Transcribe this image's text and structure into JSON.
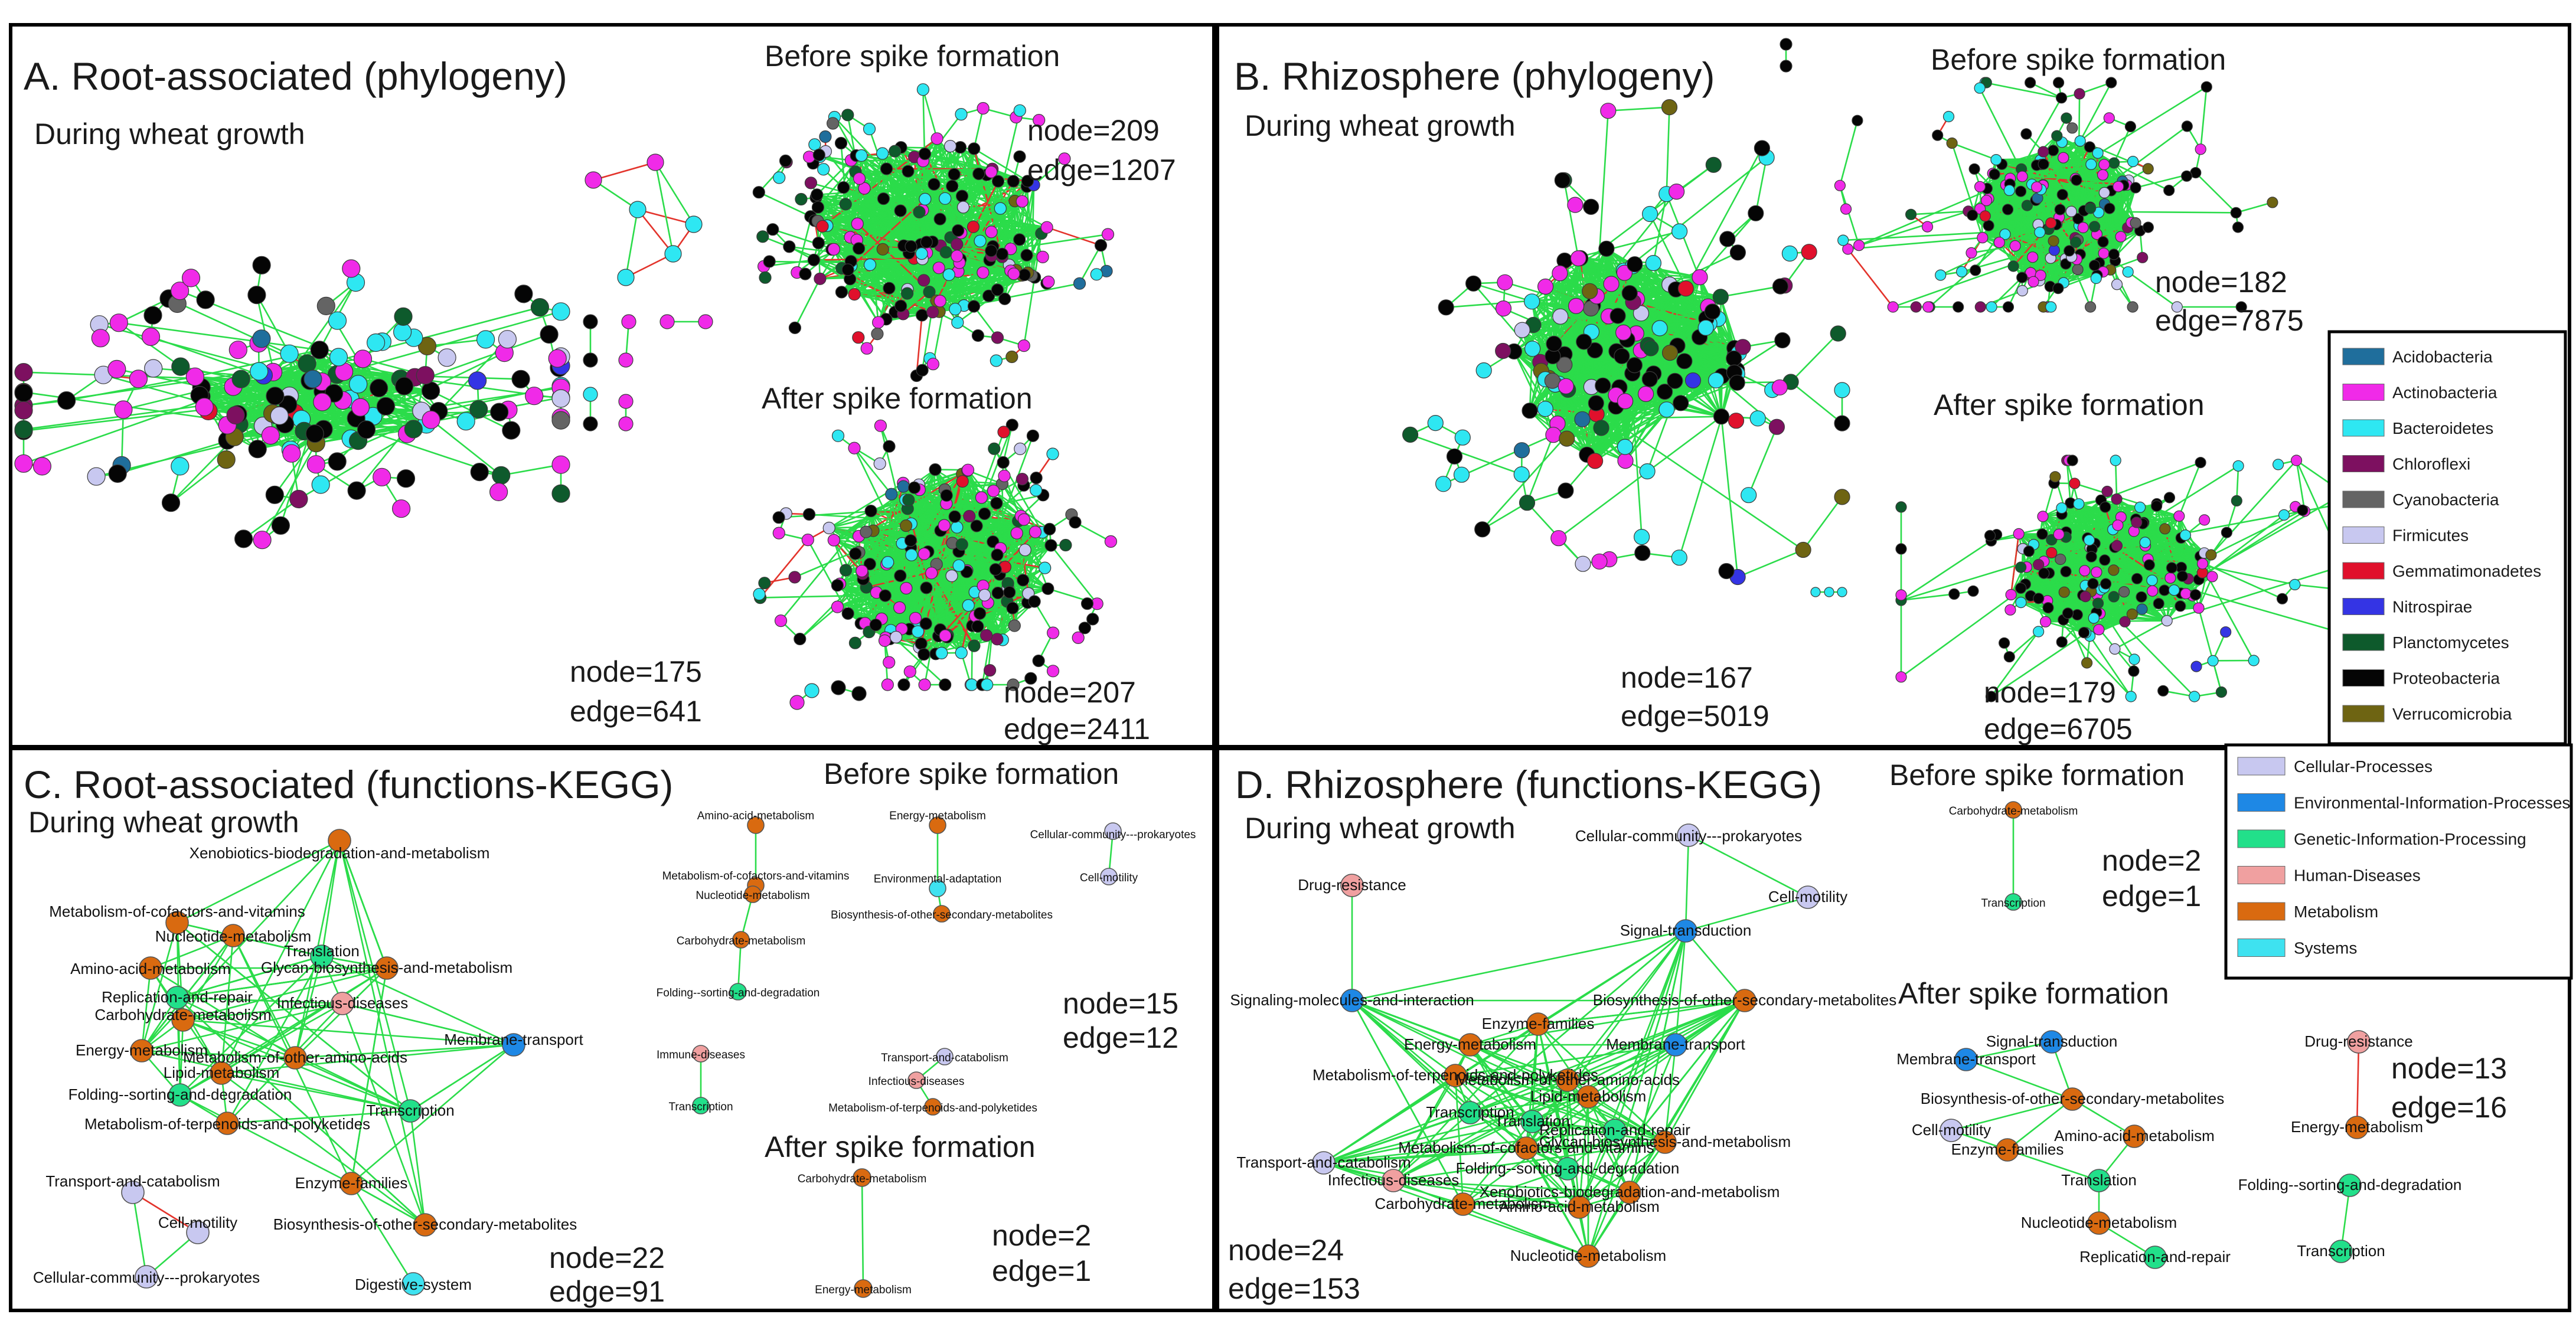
{
  "colors": {
    "edge_positive": "#2bdc4a",
    "edge_negative": "#e3332b",
    "Acidobacteria": "#1f6e9c",
    "Actinobacteria": "#f02ae8",
    "Bacteroidetes": "#2ee7f2",
    "Chloroflexi": "#7d1060",
    "Cyanobacteria": "#646464",
    "Firmicutes": "#c8c8f0",
    "Gemmatimonadetes": "#e0102c",
    "Nitrospirae": "#3434e4",
    "Planctomycetes": "#0e5a2c",
    "Proteobacteria": "#050505",
    "Verrucomicrobia": "#6e6412",
    "Cellular-Processes": "#c8c8f0",
    "Environmental-Information-Processes": "#1e88e5",
    "Genetic-Information-Processing": "#22e08a",
    "Human-Diseases": "#f0a0a0",
    "Metabolism": "#d96a10",
    "Systems": "#3ee2f0"
  },
  "panelA": {
    "title": "A. Root-associated (phylogeny)",
    "during": "During wheat growth",
    "before": "Before spike formation",
    "after": "After spike formation",
    "during_node": "node=175",
    "during_edge": "edge=641",
    "before_node": "node=209",
    "before_edge": "edge=1207",
    "after_node": "node=207",
    "after_edge": "edge=2411"
  },
  "panelB": {
    "title": "B. Rhizosphere (phylogeny)",
    "during": "During wheat growth",
    "before": "Before spike formation",
    "after": "After spike formation",
    "during_node": "node=167",
    "during_edge": "edge=5019",
    "before_node": "node=182",
    "before_edge": "edge=7875",
    "after_node": "node=179",
    "after_edge": "edge=6705"
  },
  "panelC": {
    "title": "C. Root-associated (functions-KEGG)",
    "during": "During wheat growth",
    "before": "Before spike formation",
    "after": "After spike formation",
    "during_node": "node=22",
    "during_edge": "edge=91",
    "before_node": "node=15",
    "before_edge": "edge=12",
    "after_node": "node=2",
    "after_edge": "edge=1",
    "during_labels": [
      "Xenobiotics-biodegradation-and-metabolism",
      "Metabolism-of-cofactors-and-vitamins",
      "Nucleotide-metabolism",
      "Translation",
      "Amino-acid-metabolism",
      "Glycan-biosynthesis-and-metabolism",
      "Replication-and-repair",
      "Infectious-diseases",
      "Carbohydrate-metabolism",
      "Membrane-transport",
      "Energy-metabolism",
      "Metabolism-of-other-amino-acids",
      "Lipid-metabolism",
      "Folding--sorting-and-degradation",
      "Transcription",
      "Metabolism-of-terpenoids-and-polyketides",
      "Enzyme-families",
      "Biosynthesis-of-other-secondary-metabolites",
      "Transport-and-catabolism",
      "Cell-motility",
      "Cellular-community---prokaryotes",
      "Digestive-system"
    ],
    "before_labels": [
      "Amino-acid-metabolism",
      "Energy-metabolism",
      "Cellular-community---prokaryotes",
      "Metabolism-of-cofactors-and-vitamins",
      "Environmental-adaptation",
      "Nucleotide-metabolism",
      "Cell-motility",
      "Biosynthesis-of-other-secondary-metabolites",
      "Carbohydrate-metabolism",
      "Folding--sorting-and-degradation",
      "Immune-diseases",
      "Transport-and-catabolism",
      "Infectious-diseases",
      "Transcription",
      "Metabolism-of-terpenoids-and-polyketides"
    ],
    "after_labels": [
      "Carbohydrate-metabolism",
      "Energy-metabolism"
    ]
  },
  "panelD": {
    "title": "D. Rhizosphere (functions-KEGG)",
    "during": "During wheat growth",
    "before": "Before spike formation",
    "after": "After spike formation",
    "during_node": "node=24",
    "during_edge": "edge=153",
    "before_node": "node=2",
    "before_edge": "edge=1",
    "after_node": "node=13",
    "after_edge": "edge=16",
    "during_labels": [
      "Cellular-community---prokaryotes",
      "Drug-resistance",
      "Cell-motility",
      "Signal-transduction",
      "Signaling-molecules-and-interaction",
      "Biosynthesis-of-other-secondary-metabolites",
      "Enzyme-families",
      "Energy-metabolism",
      "Membrane-transport",
      "Metabolism-of-terpenoids-and-polyketides",
      "Metabolism-of-other-amino-acids",
      "Lipid-metabolism",
      "Transcription",
      "Translation",
      "Replication-and-repair",
      "Glycan-biosynthesis-and-metabolism",
      "Metabolism-of-cofactors-and-vitamins",
      "Transport-and-catabolism",
      "Folding--sorting-and-degradation",
      "Infectious-diseases",
      "Xenobiotics-biodegradation-and-metabolism",
      "Amino-acid-metabolism",
      "Carbohydrate-metabolism",
      "Nucleotide-metabolism"
    ],
    "before_labels": [
      "Carbohydrate-metabolism",
      "Transcription"
    ],
    "after_labels": [
      "Signal-transduction",
      "Drug-resistance",
      "Membrane-transport",
      "Biosynthesis-of-other-secondary-metabolites",
      "Energy-metabolism",
      "Cell-motility",
      "Amino-acid-metabolism",
      "Enzyme-families",
      "Translation",
      "Folding--sorting-and-degradation",
      "Nucleotide-metabolism",
      "Replication-and-repair",
      "Transcription"
    ]
  },
  "phylum_legend": [
    "Acidobacteria",
    "Actinobacteria",
    "Bacteroidetes",
    "Chloroflexi",
    "Cyanobacteria",
    "Firmicutes",
    "Gemmatimonadetes",
    "Nitrospirae",
    "Planctomycetes",
    "Proteobacteria",
    "Verrucomicrobia"
  ],
  "kegg_legend": [
    "Cellular-Processes",
    "Environmental-Information-Processes",
    "Genetic-Information-Processing",
    "Human-Diseases",
    "Metabolism",
    "Systems"
  ]
}
